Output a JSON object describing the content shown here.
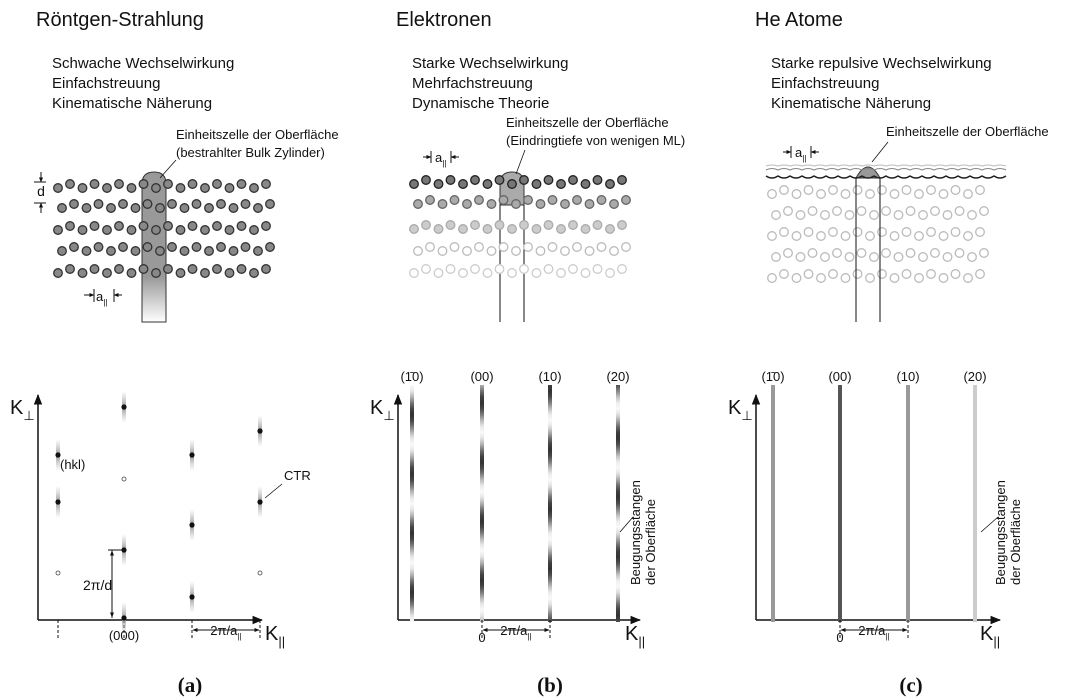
{
  "panels": [
    {
      "title": "Röntgen-Strahlung",
      "lines": [
        "Schwache Wechselwirkung",
        "Einfachstreuung",
        "Kinematische Näherung"
      ],
      "cell_label": [
        "Einheitszelle der Oberfläche",
        "(bestrahlter Bulk Zylinder)"
      ],
      "d_label": "d",
      "a_label": {
        "base": "a",
        "sub": "||"
      },
      "axis_y": {
        "base": "K",
        "sub": "⊥"
      },
      "axis_x": {
        "base": "K",
        "sub": "||"
      },
      "spot_label": "(hkl)",
      "ctr_label": "CTR",
      "spacing_label": "2π/d",
      "origin_label": "(000)",
      "period_label": {
        "base": "2π/a",
        "sub": "||"
      },
      "caption": "(a)"
    },
    {
      "title": "Elektronen",
      "lines": [
        "Starke Wechselwirkung",
        "Mehrfachstreuung",
        "Dynamische Theorie"
      ],
      "cell_label": [
        "Einheitszelle der Oberfläche",
        "(Eindringtiefe von wenigen ML)"
      ],
      "a_label": {
        "base": "a",
        "sub": "||"
      },
      "axis_y": {
        "base": "K",
        "sub": "⊥"
      },
      "axis_x": {
        "base": "K",
        "sub": "||"
      },
      "rods": [
        "(1̄0)",
        "(00)",
        "(10)",
        "(20)"
      ],
      "rod_label": [
        "Beugungsstangen",
        "der Oberfläche"
      ],
      "origin_label": "0",
      "period_label": {
        "base": "2π/a",
        "sub": "||"
      },
      "caption": "(b)"
    },
    {
      "title": "He Atome",
      "lines": [
        "Starke repulsive Wechselwirkung",
        "Einfachstreuung",
        "Kinematische Näherung"
      ],
      "cell_label": [
        "Einheitszelle der Oberfläche"
      ],
      "a_label": {
        "base": "a",
        "sub": "||"
      },
      "axis_y": {
        "base": "K",
        "sub": "⊥"
      },
      "axis_x": {
        "base": "K",
        "sub": "||"
      },
      "rods": [
        "(1̄0)",
        "(00)",
        "(10)",
        "(20)"
      ],
      "rod_label": [
        "Beugungsstangen",
        "der Oberfläche"
      ],
      "origin_label": "0",
      "period_label": {
        "base": "2π/a",
        "sub": "||"
      },
      "caption": "(c)"
    }
  ]
}
